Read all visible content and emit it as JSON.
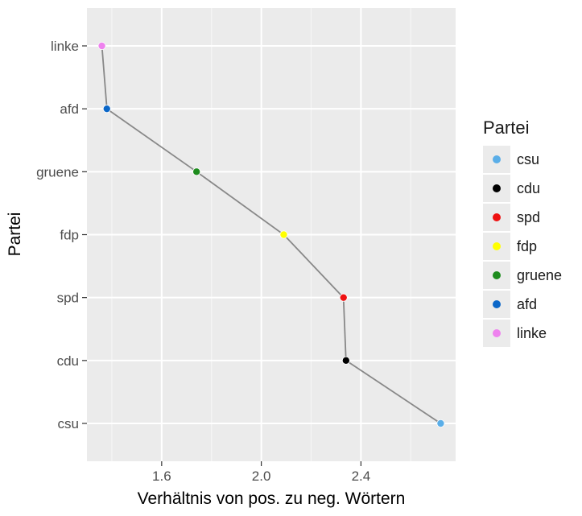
{
  "chart_data": {
    "type": "scatter",
    "xlabel": "Verhältnis von pos. zu neg. Wörtern",
    "ylabel": "Partei",
    "xlim": [
      1.3,
      2.78
    ],
    "x_ticks": [
      "1.6",
      "2.0",
      "2.4"
    ],
    "x_tick_values": [
      1.6,
      2.0,
      2.4
    ],
    "categories": [
      "csu",
      "cdu",
      "spd",
      "fdp",
      "gruene",
      "afd",
      "linke"
    ],
    "points": [
      {
        "party": "csu",
        "x": 2.72,
        "color": "#5aaee8"
      },
      {
        "party": "cdu",
        "x": 2.34,
        "color": "#000000"
      },
      {
        "party": "spd",
        "x": 2.33,
        "color": "#ee1111"
      },
      {
        "party": "fdp",
        "x": 2.09,
        "color": "#ffff00"
      },
      {
        "party": "gruene",
        "x": 1.74,
        "color": "#1e8c1e"
      },
      {
        "party": "afd",
        "x": 1.38,
        "color": "#0b67c8"
      },
      {
        "party": "linke",
        "x": 1.36,
        "color": "#ee82ee"
      }
    ],
    "line_color": "#888888",
    "panel_bg": "#ebebeb",
    "grid": true,
    "legend_position": "right"
  },
  "legend": {
    "title": "Partei",
    "items": [
      {
        "label": "csu",
        "color": "#5aaee8"
      },
      {
        "label": "cdu",
        "color": "#000000"
      },
      {
        "label": "spd",
        "color": "#ee1111"
      },
      {
        "label": "fdp",
        "color": "#ffff00"
      },
      {
        "label": "gruene",
        "color": "#1e8c1e"
      },
      {
        "label": "afd",
        "color": "#0b67c8"
      },
      {
        "label": "linke",
        "color": "#ee82ee"
      }
    ]
  }
}
